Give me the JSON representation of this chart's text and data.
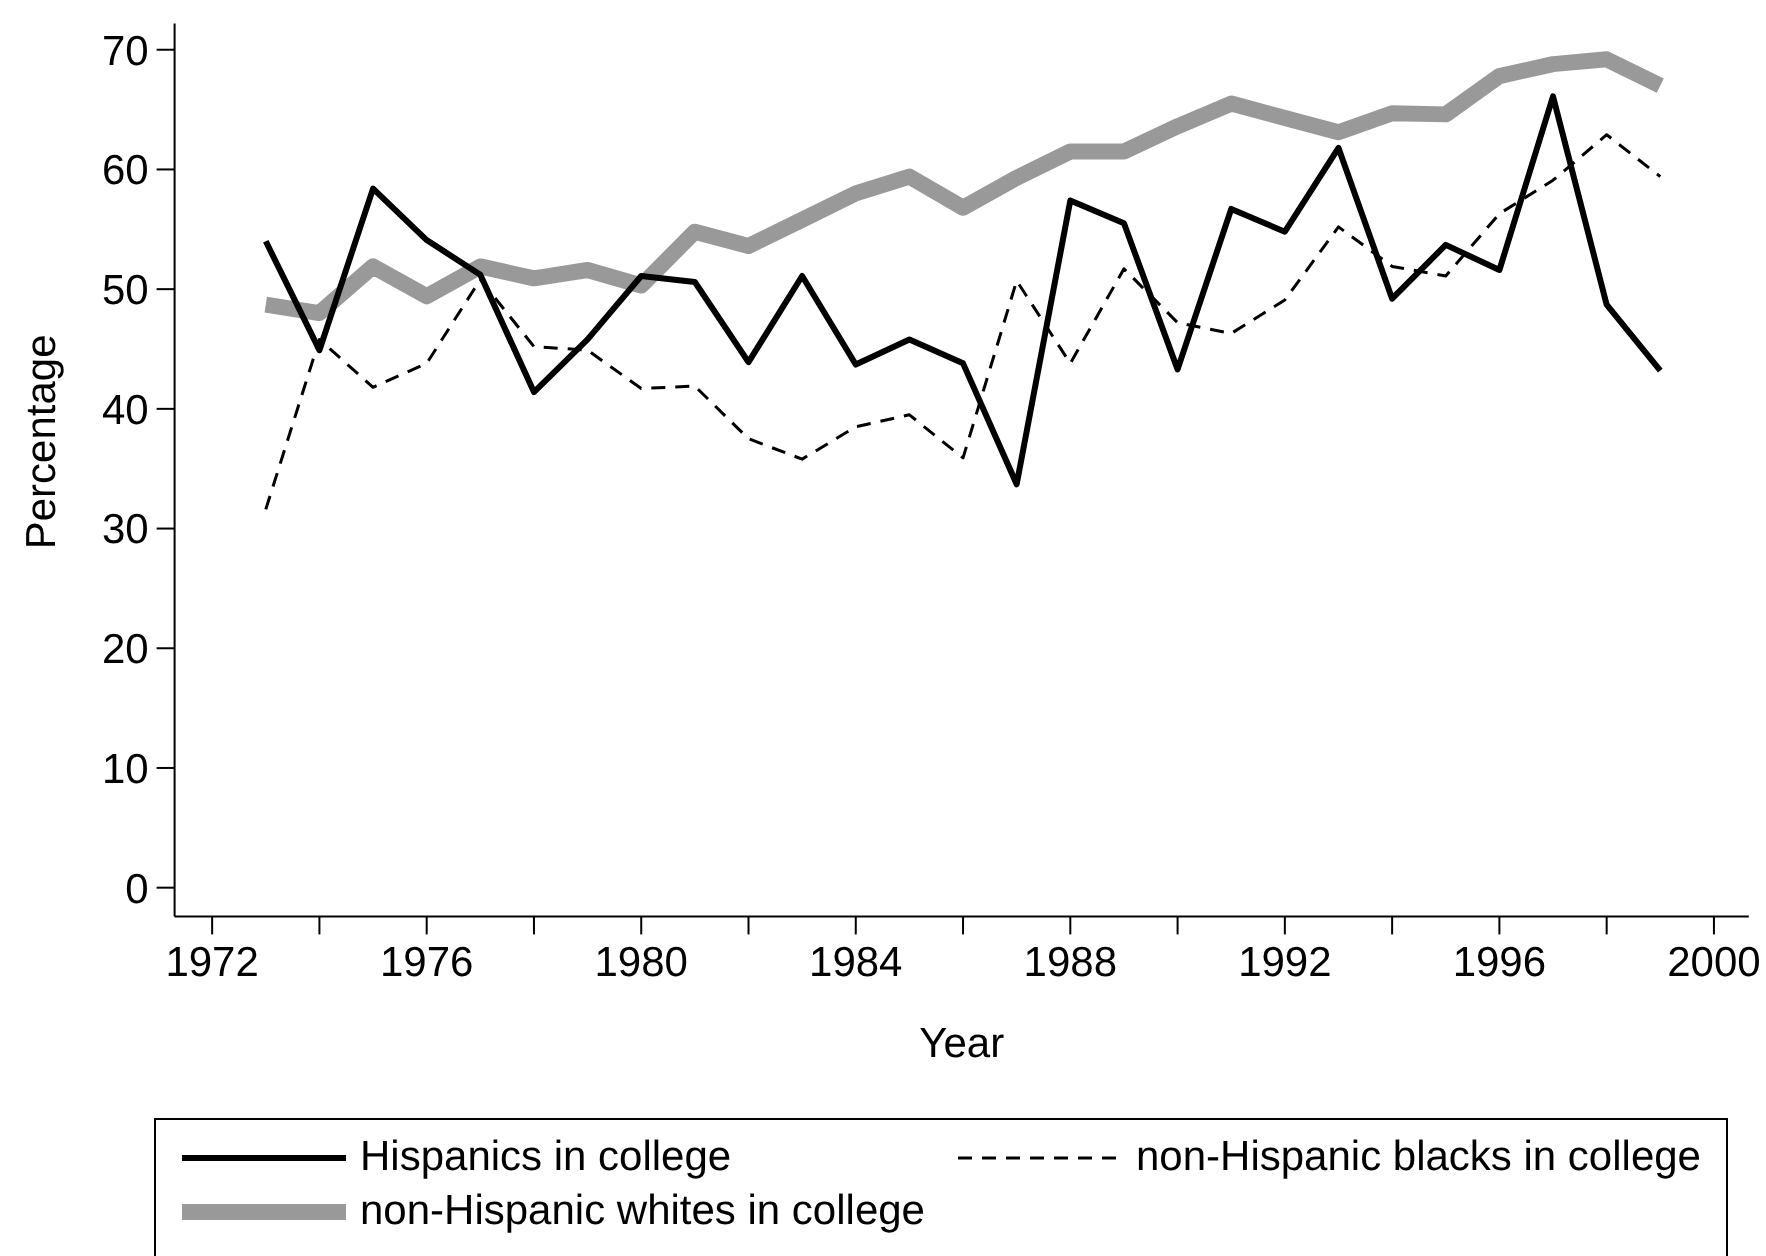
{
  "chart_data": {
    "type": "line",
    "xlabel": "Year",
    "ylabel": "Percentage",
    "x": [
      1973,
      1974,
      1975,
      1976,
      1977,
      1978,
      1979,
      1980,
      1981,
      1982,
      1983,
      1984,
      1985,
      1986,
      1987,
      1988,
      1989,
      1990,
      1991,
      1992,
      1993,
      1994,
      1995,
      1996,
      1997,
      1998,
      1999
    ],
    "series": [
      {
        "name": "Hispanics in college",
        "color": "#000000",
        "line_style": "solid",
        "values": [
          54.0,
          44.9,
          58.4,
          54.1,
          51.2,
          41.4,
          45.8,
          51.1,
          50.6,
          43.9,
          51.1,
          43.7,
          45.8,
          43.8,
          33.7,
          57.4,
          55.5,
          43.3,
          56.7,
          54.8,
          61.8,
          49.2,
          53.7,
          51.6,
          66.1,
          48.7,
          43.2
        ]
      },
      {
        "name": "non-Hispanic blacks in college",
        "color": "#000000",
        "line_style": "dashed",
        "values": [
          31.6,
          45.8,
          41.8,
          43.8,
          50.8,
          45.2,
          44.9,
          41.7,
          41.9,
          37.5,
          35.8,
          38.5,
          39.5,
          35.9,
          50.7,
          43.8,
          51.7,
          47.2,
          46.3,
          49.1,
          55.2,
          51.9,
          51.1,
          56.3,
          59.1,
          62.9,
          59.4
        ]
      },
      {
        "name": "non-Hispanic whites in college",
        "color": "#999999",
        "line_style": "solid",
        "values": [
          48.7,
          48.0,
          51.9,
          49.4,
          51.9,
          50.9,
          51.6,
          50.3,
          54.8,
          53.6,
          55.8,
          58.0,
          59.4,
          56.8,
          59.3,
          61.5,
          61.5,
          63.6,
          65.5,
          64.3,
          63.1,
          64.7,
          64.6,
          67.8,
          68.8,
          69.2,
          67.0
        ]
      }
    ],
    "xlim": [
      1971.3,
      2000.65
    ],
    "xticks": [
      1972,
      {
        "value": 1974,
        "label": null
      },
      1976,
      {
        "value": 1978,
        "label": null
      },
      1980,
      {
        "value": 1982,
        "label": null
      },
      1984,
      {
        "value": 1986,
        "label": null
      },
      1988,
      {
        "value": 1990,
        "label": null
      },
      1992,
      {
        "value": 1994,
        "label": null
      },
      1996,
      {
        "value": 1998,
        "label": null
      },
      2000
    ],
    "ylim": [
      -2.4,
      72.2
    ],
    "yticks": [
      0,
      10,
      20,
      30,
      40,
      50,
      60,
      70
    ],
    "legend": "bottom",
    "marker": "none"
  }
}
